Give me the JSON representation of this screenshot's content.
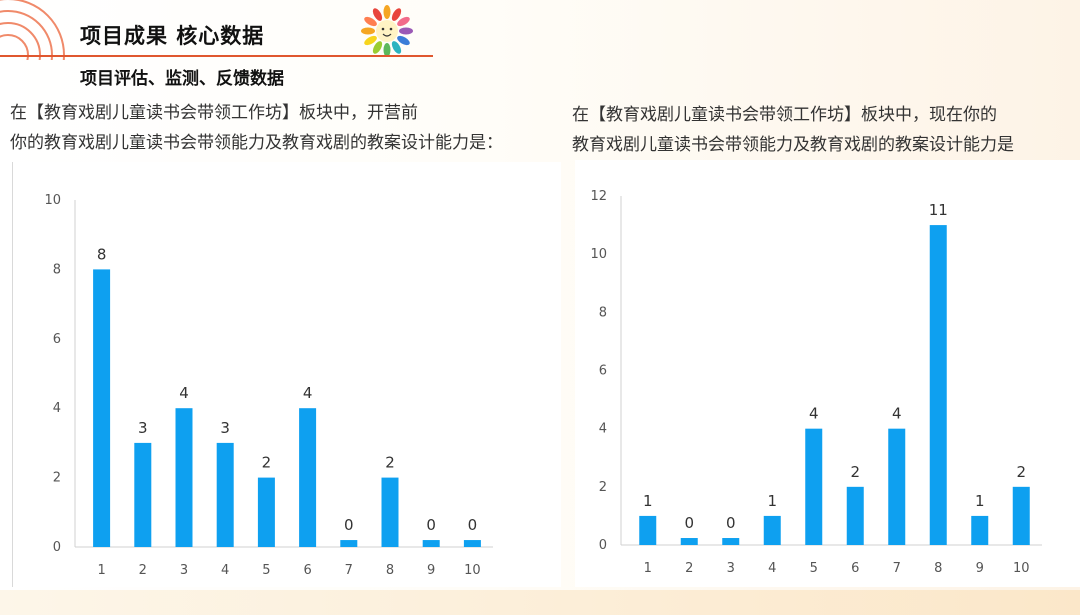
{
  "header": {
    "title": "项目成果 核心数据",
    "subtitle": "项目评估、监测、反馈数据"
  },
  "colors": {
    "bar": "#0ea0f0",
    "accent": "#e0572f",
    "axis": "#d0d0d0"
  },
  "questions": {
    "left_line1": "在【教育戏剧儿童读书会带领工作坊】板块中，开营前",
    "left_line2": "你的教育戏剧儿童读书会带领能力及教育戏剧的教案设计能力是：",
    "right_line1": "在【教育戏剧儿童读书会带领工作坊】板块中，现在你的",
    "right_line2": "教育戏剧儿童读书会带领能力及教育戏剧的教案设计能力是"
  },
  "chart_data": [
    {
      "type": "bar",
      "categories": [
        "1",
        "2",
        "3",
        "4",
        "5",
        "6",
        "7",
        "8",
        "9",
        "10"
      ],
      "values": [
        8,
        3,
        4,
        3,
        2,
        4,
        0,
        2,
        0,
        0
      ],
      "yticks": [
        0,
        2,
        4,
        6,
        8,
        10
      ],
      "ylim": [
        0,
        10
      ],
      "data_labels": true,
      "grid": false
    },
    {
      "type": "bar",
      "categories": [
        "1",
        "2",
        "3",
        "4",
        "5",
        "6",
        "7",
        "8",
        "9",
        "10"
      ],
      "values": [
        1,
        0,
        0,
        1,
        4,
        2,
        4,
        11,
        1,
        2
      ],
      "yticks": [
        0,
        2,
        4,
        6,
        8,
        10,
        12
      ],
      "ylim": [
        0,
        12
      ],
      "data_labels": true,
      "grid": false
    }
  ]
}
